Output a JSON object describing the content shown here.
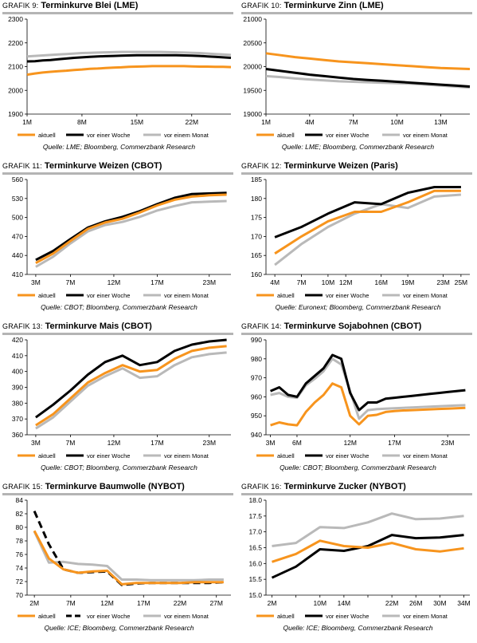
{
  "colors": {
    "aktuell": "#f7941d",
    "vor_einer_woche": "#000000",
    "vor_einem_monat": "#b9b9b9",
    "rule": "#b4b4b4"
  },
  "panels": [
    {
      "prefix": "GRAFIK 9:",
      "title": "Terminkurve Blei (LME)",
      "source": "Quelle: LME; Bloomberg, Commerzbank Research"
    },
    {
      "prefix": "GRAFIK 10:",
      "title": "Terminkurve Zinn (LME)",
      "source": "Quelle: LME; Bloomberg, Commerzbank Research"
    },
    {
      "prefix": "GRAFIK 11:",
      "title": "Terminkurve Weizen (CBOT)",
      "source": "Quelle: CBOT; Bloomberg, Commerzbank Research"
    },
    {
      "prefix": "GRAFIK 12:",
      "title": "Terminkurve Weizen (Paris)",
      "source": "Quelle: Euronext; Bloomberg, Commerzbank Research"
    },
    {
      "prefix": "GRAFIK 13:",
      "title": "Terminkurve Mais (CBOT)",
      "source": "Quelle: CBOT; Bloomberg, Commerzbank Research"
    },
    {
      "prefix": "GRAFIK 14:",
      "title": "Terminkurve Sojabohnen (CBOT)",
      "source": "Quelle: CBOT; Bloomberg, Commerzbank Research"
    },
    {
      "prefix": "GRAFIK 15:",
      "title": "Terminkurve Baumwolle (NYBOT)",
      "source": "Quelle: ICE; Bloomberg, Commerzbank Research"
    },
    {
      "prefix": "GRAFIK 16:",
      "title": "Terminkurve Zucker (NYBOT)",
      "source": "Quelle: ICE; Bloomberg, Commerzbank Research"
    }
  ],
  "chart_data": [
    {
      "type": "line",
      "title": "Terminkurve Blei (LME)",
      "x": [
        1,
        2,
        3,
        4,
        5,
        6,
        7,
        8,
        9,
        10,
        11,
        12,
        13,
        14,
        15,
        16,
        17,
        18,
        19,
        20,
        21,
        22,
        23,
        24,
        25,
        26,
        27
      ],
      "xticks": [
        1,
        8,
        15,
        22
      ],
      "xtick_labels": [
        "1M",
        "8M",
        "15M",
        "22M"
      ],
      "xlim": [
        1,
        27
      ],
      "ylim": [
        1900,
        2300
      ],
      "yticks": [
        1900,
        2000,
        2100,
        2200,
        2300
      ],
      "series": [
        {
          "name": "aktuell",
          "style": "solid",
          "values": [
            2066,
            2071,
            2075,
            2078,
            2081,
            2083,
            2086,
            2088,
            2091,
            2092,
            2094,
            2096,
            2097,
            2099,
            2100,
            2101,
            2102,
            2102,
            2102,
            2102,
            2102,
            2101,
            2100,
            2100,
            2099,
            2099,
            2098
          ]
        },
        {
          "name": "vor einer Woche",
          "style": "solid",
          "values": [
            2122,
            2123,
            2126,
            2128,
            2131,
            2134,
            2137,
            2139,
            2141,
            2143,
            2144,
            2145,
            2146,
            2147,
            2148,
            2148,
            2148,
            2148,
            2148,
            2148,
            2147,
            2146,
            2145,
            2143,
            2141,
            2139,
            2137
          ]
        },
        {
          "name": "vor einem Monat",
          "style": "solid",
          "values": [
            2143,
            2145,
            2147,
            2149,
            2151,
            2153,
            2155,
            2157,
            2158,
            2159,
            2160,
            2161,
            2162,
            2162,
            2162,
            2162,
            2162,
            2162,
            2161,
            2160,
            2159,
            2158,
            2157,
            2155,
            2153,
            2151,
            2149
          ]
        }
      ],
      "legend": "bottom",
      "grid": false
    },
    {
      "type": "line",
      "title": "Terminkurve Zinn (LME)",
      "x": [
        1,
        2,
        3,
        4,
        5,
        6,
        7,
        8,
        9,
        10,
        11,
        12,
        13,
        14,
        15
      ],
      "xticks": [
        1,
        4,
        7,
        10,
        13
      ],
      "xtick_labels": [
        "1M",
        "4M",
        "7M",
        "10M",
        "13M"
      ],
      "xlim": [
        1,
        15
      ],
      "ylim": [
        19000,
        21000
      ],
      "yticks": [
        19000,
        19500,
        20000,
        20500,
        21000
      ],
      "series": [
        {
          "name": "aktuell",
          "style": "solid",
          "values": [
            20280,
            20240,
            20200,
            20170,
            20140,
            20110,
            20090,
            20070,
            20050,
            20030,
            20010,
            19990,
            19970,
            19960,
            19950
          ]
        },
        {
          "name": "vor einer Woche",
          "style": "solid",
          "values": [
            19950,
            19910,
            19870,
            19830,
            19800,
            19770,
            19740,
            19720,
            19700,
            19680,
            19660,
            19640,
            19620,
            19600,
            19580
          ]
        },
        {
          "name": "vor einem Monat",
          "style": "solid",
          "values": [
            19800,
            19780,
            19750,
            19730,
            19710,
            19690,
            19680,
            19670,
            19660,
            19650,
            19640,
            19620,
            19600,
            19580,
            19560
          ]
        }
      ],
      "legend": "bottom",
      "grid": false
    },
    {
      "type": "line",
      "title": "Terminkurve Weizen (CBOT)",
      "x": [
        3,
        5,
        7,
        9,
        11,
        13,
        15,
        17,
        19,
        21,
        23,
        25
      ],
      "xticks": [
        3,
        7,
        12,
        17,
        23
      ],
      "xtick_labels": [
        "3M",
        "7M",
        "12M",
        "17M",
        "23M"
      ],
      "xlim": [
        2,
        25.5
      ],
      "ylim": [
        410,
        560
      ],
      "yticks": [
        410,
        440,
        470,
        500,
        530,
        560
      ],
      "series": [
        {
          "name": "aktuell",
          "style": "solid",
          "values": [
            428,
            443,
            463,
            482,
            492,
            498,
            508,
            519,
            528,
            533,
            535,
            536
          ]
        },
        {
          "name": "vor einer Woche",
          "style": "solid",
          "values": [
            433,
            447,
            466,
            484,
            494,
            501,
            510,
            521,
            531,
            537,
            538,
            539
          ]
        },
        {
          "name": "vor einem Monat",
          "style": "solid",
          "values": [
            422,
            438,
            459,
            478,
            488,
            493,
            501,
            511,
            518,
            524,
            525,
            526
          ]
        }
      ],
      "legend": "bottom",
      "grid": false
    },
    {
      "type": "line",
      "title": "Terminkurve Weizen (Paris)",
      "x": [
        4,
        7,
        10,
        13,
        16,
        19,
        22,
        25
      ],
      "xticks": [
        4,
        7,
        10,
        12,
        16,
        19,
        23,
        25
      ],
      "xtick_labels": [
        "4M",
        "7M",
        "10M",
        "12M",
        "16M",
        "19M",
        "23M",
        "25M"
      ],
      "xlim": [
        3,
        26
      ],
      "ylim": [
        160,
        185
      ],
      "yticks": [
        160,
        165,
        170,
        175,
        180,
        185
      ],
      "series": [
        {
          "name": "aktuell",
          "style": "solid",
          "values": [
            165.5,
            170,
            174,
            176.5,
            176.5,
            179,
            182,
            182
          ]
        },
        {
          "name": "vor einer Woche",
          "style": "solid",
          "values": [
            169.8,
            172.5,
            176,
            179,
            178.5,
            181.5,
            183,
            183
          ]
        },
        {
          "name": "vor einem Monat",
          "style": "solid",
          "values": [
            162.5,
            168,
            172.5,
            176,
            178.5,
            177.5,
            180.5,
            181
          ]
        }
      ],
      "legend": "bottom",
      "grid": false
    },
    {
      "type": "line",
      "title": "Terminkurve Mais (CBOT)",
      "x": [
        3,
        5,
        7,
        9,
        11,
        13,
        15,
        17,
        19,
        21,
        23,
        25
      ],
      "xticks": [
        3,
        7,
        12,
        17,
        23
      ],
      "xtick_labels": [
        "3M",
        "7M",
        "12M",
        "17M",
        "23M"
      ],
      "xlim": [
        2,
        25.5
      ],
      "ylim": [
        360,
        420
      ],
      "yticks": [
        360,
        370,
        380,
        390,
        400,
        410,
        420
      ],
      "series": [
        {
          "name": "aktuell",
          "style": "solid",
          "values": [
            366,
            373,
            383,
            393,
            399,
            404,
            400,
            401,
            408,
            413,
            415,
            416
          ]
        },
        {
          "name": "vor einer Woche",
          "style": "solid",
          "values": [
            371,
            379,
            388,
            398,
            406,
            410,
            404,
            406,
            413,
            417,
            419,
            420
          ]
        },
        {
          "name": "vor einem Monat",
          "style": "solid",
          "values": [
            364,
            371,
            381,
            391,
            397,
            402,
            396,
            397,
            404,
            409,
            411,
            412
          ]
        }
      ],
      "legend": "bottom",
      "grid": false
    },
    {
      "type": "line",
      "title": "Terminkurve Sojabohnen (CBOT)",
      "x": [
        3,
        4,
        5,
        6,
        7,
        8,
        9,
        10,
        11,
        12,
        13,
        14,
        15,
        16,
        17,
        18,
        19,
        20,
        21,
        22,
        23,
        24,
        25
      ],
      "xticks": [
        3,
        6,
        12,
        17,
        23
      ],
      "xtick_labels": [
        "3M",
        "6M",
        "12M",
        "17M",
        "23M"
      ],
      "xlim": [
        2.5,
        25.5
      ],
      "ylim": [
        940,
        990
      ],
      "yticks": [
        940,
        950,
        960,
        970,
        980,
        990
      ],
      "series": [
        {
          "name": "aktuell",
          "style": "solid",
          "values": [
            945,
            946.5,
            945.5,
            945,
            952,
            957,
            961,
            967,
            965,
            950,
            945.5,
            950,
            950.5,
            952,
            952.5,
            952.8,
            953,
            953.2,
            953.4,
            953.6,
            953.8,
            954,
            954.2
          ]
        },
        {
          "name": "vor einer Woche",
          "style": "solid",
          "values": [
            963,
            965,
            961,
            960,
            967,
            971,
            975,
            982,
            980,
            962,
            953,
            957,
            957,
            959,
            959.5,
            960,
            960.5,
            961,
            961.5,
            962,
            962.5,
            963,
            963.5
          ]
        },
        {
          "name": "vor einem Monat",
          "style": "solid",
          "values": [
            961,
            962,
            960,
            959.5,
            966,
            969.5,
            973.5,
            980,
            977,
            963,
            948.5,
            953,
            953.5,
            953.8,
            954,
            954.2,
            954.4,
            954.6,
            954.8,
            955,
            955.2,
            955.4,
            955.6
          ]
        }
      ],
      "legend": "bottom",
      "grid": false
    },
    {
      "type": "line",
      "title": "Terminkurve Baumwolle (NYBOT)",
      "x": [
        2,
        4,
        6,
        8,
        10,
        12,
        14,
        16,
        18,
        20,
        22,
        24,
        26,
        28
      ],
      "xticks": [
        2,
        7,
        12,
        17,
        22,
        27
      ],
      "xtick_labels": [
        "2M",
        "7M",
        "12M",
        "17M",
        "22M",
        "27M"
      ],
      "xlim": [
        1,
        29
      ],
      "ylim": [
        70,
        84
      ],
      "yticks": [
        70,
        72,
        74,
        76,
        78,
        80,
        82,
        84
      ],
      "series": [
        {
          "name": "aktuell",
          "style": "solid",
          "values": [
            79.5,
            75.4,
            73.8,
            73.3,
            73.5,
            73.6,
            71.6,
            71.8,
            71.8,
            71.8,
            71.8,
            71.9,
            71.9,
            71.9
          ]
        },
        {
          "name": "vor einer Woche",
          "style": "dashed",
          "values": [
            82.4,
            77.5,
            73.8,
            73.3,
            73.4,
            73.5,
            71.5,
            71.7,
            71.8,
            71.8,
            71.8,
            71.8,
            71.8,
            71.9
          ]
        },
        {
          "name": "vor einem Monat",
          "style": "solid",
          "values": [
            79.4,
            74.8,
            74.9,
            74.6,
            74.5,
            74.3,
            72.3,
            72.3,
            72.2,
            72.2,
            72.2,
            72.2,
            72.3,
            72.3
          ]
        }
      ],
      "legend": "bottom",
      "grid": false
    },
    {
      "type": "line",
      "title": "Terminkurve Zucker (NYBOT)",
      "x": [
        2,
        6,
        10,
        14,
        18,
        22,
        26,
        30,
        34
      ],
      "xticks": [
        2,
        6,
        10,
        14,
        18,
        22,
        26,
        30,
        34
      ],
      "xtick_labels": [
        "2M",
        "",
        "10M",
        "14M",
        "",
        "22M",
        "26M",
        "30M",
        "34M"
      ],
      "xlim": [
        1,
        35
      ],
      "ylim": [
        15,
        18
      ],
      "yticks": [
        15.0,
        15.5,
        16.0,
        16.5,
        17.0,
        17.5,
        18.0
      ],
      "series": [
        {
          "name": "aktuell",
          "style": "solid",
          "values": [
            16.05,
            16.3,
            16.72,
            16.55,
            16.5,
            16.65,
            16.45,
            16.38,
            16.48
          ]
        },
        {
          "name": "vor einer Woche",
          "style": "solid",
          "values": [
            15.55,
            15.9,
            16.45,
            16.4,
            16.55,
            16.9,
            16.8,
            16.82,
            16.9
          ]
        },
        {
          "name": "vor einem Monat",
          "style": "solid",
          "values": [
            16.55,
            16.65,
            17.15,
            17.12,
            17.3,
            17.58,
            17.4,
            17.42,
            17.5
          ]
        }
      ],
      "legend": "bottom",
      "grid": false
    }
  ]
}
